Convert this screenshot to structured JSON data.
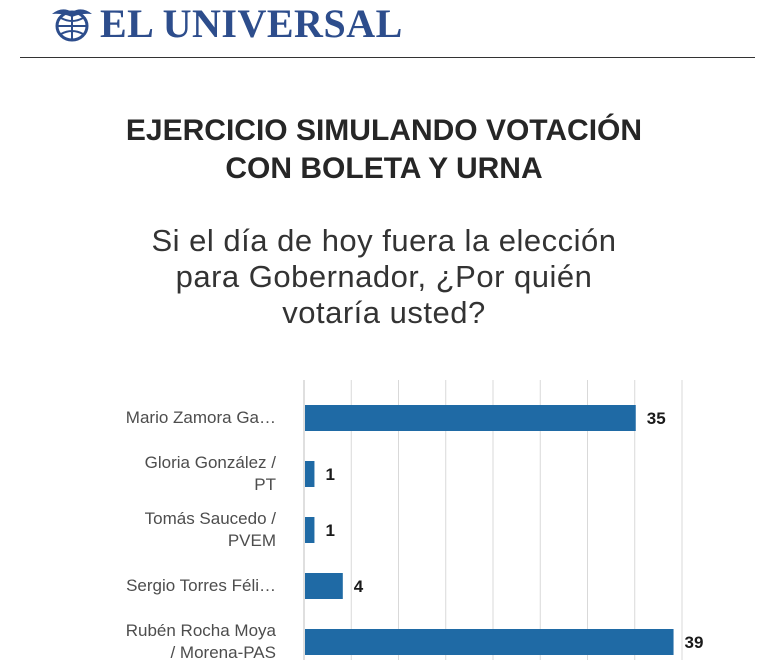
{
  "masthead": {
    "brand": "EL UNIVERSAL",
    "logo_icon": "globe-eagle-icon",
    "brand_color": "#2d4d8c"
  },
  "title": "EJERCICIO SIMULANDO VOTACIÓN\nCON BOLETA Y URNA",
  "subtitle": "Si el día de hoy fuera la elección\npara Gobernador, ¿Por quién\nvotaría usted?",
  "chart_data": {
    "type": "bar",
    "orientation": "horizontal",
    "categories": [
      "Mario Zamora Ga…",
      "Gloria González /\nPT",
      "Tomás Saucedo /\nPVEM",
      "Sergio Torres Féli…",
      "Rubén Rocha Moya\n/ Morena-PAS"
    ],
    "values": [
      35,
      1,
      1,
      4,
      39
    ],
    "data_labels": [
      "35",
      "1",
      "1",
      "4",
      "39"
    ],
    "xlim": [
      0,
      40
    ],
    "grid": true,
    "bar_color": "#1f6aa5"
  }
}
